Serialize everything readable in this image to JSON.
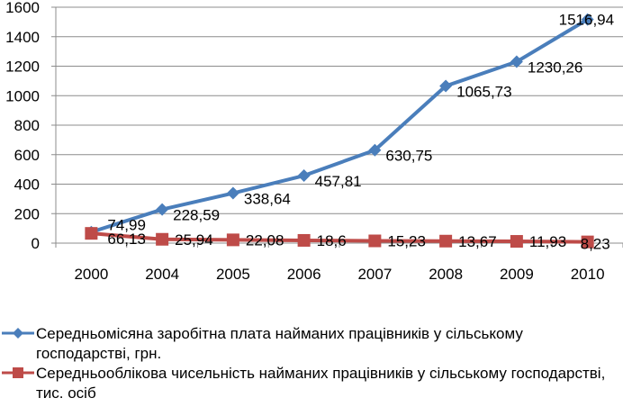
{
  "chart_data": {
    "type": "line",
    "title": "",
    "xlabel": "",
    "ylabel": "",
    "categories": [
      "2000",
      "2004",
      "2005",
      "2006",
      "2007",
      "2008",
      "2009",
      "2010"
    ],
    "ylim": [
      0,
      1600
    ],
    "yticks": [
      "0",
      "200",
      "400",
      "600",
      "800",
      "1000",
      "1200",
      "1400",
      "1600"
    ],
    "grid": true,
    "legend_position": "bottom",
    "series": [
      {
        "name": "Середньомісяна заробітна плата найманих працівників у сільському господарстві, грн.",
        "values": [
          74.99,
          228.59,
          338.64,
          457.81,
          630.75,
          1065.73,
          1230.26,
          1516.94
        ],
        "labels": [
          "74,99",
          "228,59",
          "338,64",
          "457,81",
          "630,75",
          "1065,73",
          "1230,26",
          "1516,94"
        ],
        "color": "#4a7ebb",
        "marker": "diamond"
      },
      {
        "name": "Середньооблікова чисельність найманих працівників у сільському господарстві, тис. осіб",
        "values": [
          66.13,
          25.94,
          22.08,
          18.6,
          15.23,
          13.67,
          11.93,
          8.23
        ],
        "labels": [
          "66,13",
          "25,94",
          "22,08",
          "18,6",
          "15,23",
          "13,67",
          "11,93",
          "8,23"
        ],
        "color": "#be4b48",
        "marker": "square"
      }
    ]
  }
}
